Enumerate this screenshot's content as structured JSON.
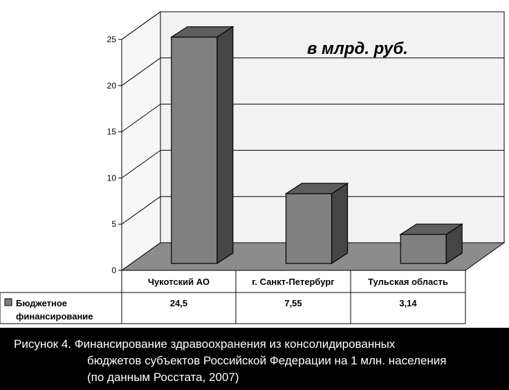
{
  "chart_data": {
    "type": "bar",
    "unit_label": "в млрд. руб.",
    "categories": [
      "Чукотский АО",
      "г. Санкт-Петербург",
      "Тульская область"
    ],
    "series": [
      {
        "name_lines": [
          "Бюджетное",
          "финансирование"
        ],
        "values": [
          24.5,
          7.55,
          3.14
        ],
        "value_labels": [
          "24,5",
          "7,55",
          "3,14"
        ],
        "color": "#808080"
      }
    ],
    "ylim": [
      0,
      25
    ],
    "yticks": [
      0,
      5,
      10,
      15,
      20,
      25
    ],
    "grid": true,
    "legend": "data-table-left"
  },
  "caption": {
    "line1": "Рисунок  4. Финансирование здравоохранения из консолидированных",
    "line2": "бюджетов субъектов Российской Федерации на 1 млн. населения",
    "line3": "(по данным Росстата, 2007)"
  }
}
